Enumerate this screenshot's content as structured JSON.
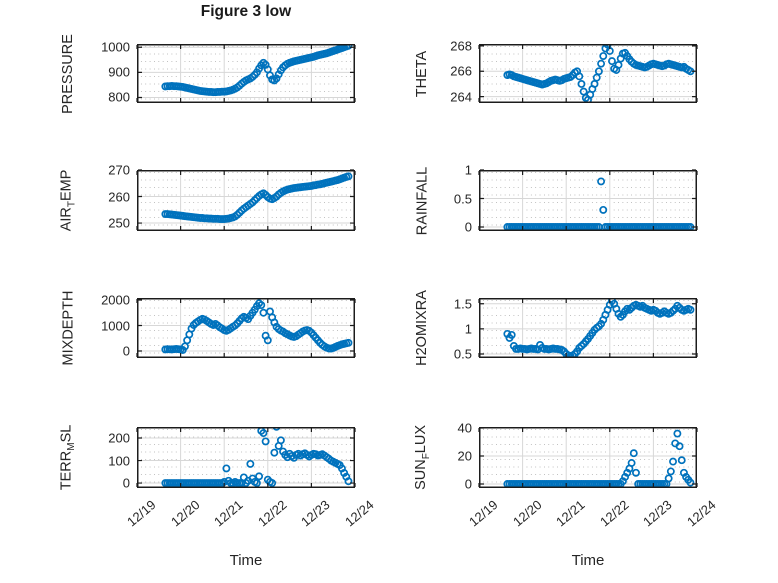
{
  "title": "Figure 3 low",
  "xlabel": "Time",
  "x_axis": {
    "tick_labels": [
      "12/19",
      "12/20",
      "12/21",
      "12/22",
      "12/23",
      "12/24"
    ],
    "tick_values": [
      0,
      1,
      2,
      3,
      4,
      5
    ]
  },
  "style": {
    "marker_color": "#0072BD",
    "major_grid_color": "#d7d7d7",
    "minor_grid_color": "#b3b3b3",
    "axis_color": "#1c1c1c",
    "text_color": "#262626",
    "background": "#ffffff"
  },
  "sampling": {
    "x_start": 0.65,
    "x_step": 0.05,
    "x_unit": "days-since-12/19"
  },
  "chart_data": [
    {
      "id": "pressure",
      "type": "scatter",
      "position": {
        "row": 0,
        "col": 0
      },
      "ylabel_segments": [
        [
          "PRESSURE",
          0
        ]
      ],
      "yticks": [
        800,
        900,
        1000
      ],
      "ylim": [
        778,
        1013
      ],
      "xlim": [
        0,
        5
      ],
      "y": [
        844,
        845,
        845,
        846,
        845,
        845,
        844,
        843,
        842,
        840,
        838,
        836,
        834,
        832,
        830,
        828,
        826,
        825,
        824,
        823,
        822,
        822,
        821,
        821,
        822,
        822,
        823,
        823,
        824,
        826,
        828,
        831,
        835,
        840,
        847,
        855,
        862,
        868,
        872,
        876,
        882,
        890,
        900,
        915,
        928,
        938,
        930,
        912,
        888,
        872,
        868,
        876,
        892,
        908,
        920,
        928,
        934,
        938,
        941,
        944,
        946,
        948,
        950,
        952,
        954,
        956,
        958,
        960,
        962,
        965,
        968,
        970,
        972,
        974,
        976,
        979,
        982,
        985,
        988,
        991,
        994,
        997,
        1000,
        1003,
        1006
      ]
    },
    {
      "id": "theta",
      "type": "scatter",
      "position": {
        "row": 0,
        "col": 1
      },
      "ylabel_segments": [
        [
          "THETA",
          0
        ]
      ],
      "yticks": [
        264,
        266,
        268
      ],
      "ylim": [
        263.5,
        268.15
      ],
      "xlim": [
        0,
        5
      ],
      "y": [
        265.7,
        265.75,
        265.7,
        265.6,
        265.55,
        265.5,
        265.45,
        265.4,
        265.35,
        265.3,
        265.25,
        265.2,
        265.15,
        265.1,
        265.05,
        265.0,
        264.95,
        265.0,
        265.05,
        265.15,
        265.25,
        265.3,
        265.35,
        265.3,
        265.25,
        265.3,
        265.4,
        265.45,
        265.5,
        265.55,
        265.7,
        265.9,
        266.0,
        265.6,
        265.0,
        264.4,
        263.9,
        263.75,
        264.15,
        264.6,
        265.0,
        265.5,
        266.0,
        266.6,
        267.2,
        267.8,
        268.1,
        267.6,
        266.8,
        266.2,
        266.1,
        266.5,
        267.0,
        267.4,
        267.45,
        267.2,
        266.95,
        266.75,
        266.6,
        266.5,
        266.45,
        266.4,
        266.35,
        266.3,
        266.35,
        266.45,
        266.55,
        266.6,
        266.55,
        266.5,
        266.45,
        266.4,
        266.45,
        266.55,
        266.6,
        266.55,
        266.5,
        266.45,
        266.4,
        266.35,
        266.3,
        266.35,
        266.2,
        266.1,
        266.0
      ]
    },
    {
      "id": "air_temp",
      "type": "scatter",
      "position": {
        "row": 1,
        "col": 0
      },
      "ylabel_segments": [
        [
          "AIR",
          0
        ],
        [
          "T",
          1
        ],
        [
          "EMP",
          0
        ]
      ],
      "yticks": [
        250,
        260,
        270
      ],
      "ylim": [
        247,
        270
      ],
      "xlim": [
        0,
        5
      ],
      "y": [
        253.4,
        253.4,
        253.3,
        253.2,
        253.1,
        253.0,
        252.9,
        252.8,
        252.7,
        252.6,
        252.5,
        252.4,
        252.3,
        252.2,
        252.1,
        252.0,
        251.9,
        251.9,
        251.8,
        251.8,
        251.7,
        251.7,
        251.6,
        251.6,
        251.6,
        251.5,
        251.5,
        251.5,
        251.6,
        251.7,
        251.9,
        252.1,
        252.5,
        253.1,
        253.9,
        254.7,
        255.4,
        256.0,
        256.6,
        257.2,
        257.8,
        258.6,
        259.4,
        260.2,
        260.8,
        261.2,
        260.6,
        259.8,
        259.2,
        259.0,
        259.4,
        260.0,
        260.8,
        261.4,
        261.9,
        262.3,
        262.6,
        262.8,
        263.0,
        263.2,
        263.3,
        263.4,
        263.5,
        263.6,
        263.7,
        263.8,
        263.9,
        264.0,
        264.2,
        264.3,
        264.5,
        264.6,
        264.8,
        265.0,
        265.2,
        265.4,
        265.6,
        265.8,
        266.0,
        266.2,
        266.5,
        266.8,
        267.1,
        267.4,
        267.6
      ]
    },
    {
      "id": "rainfall",
      "type": "scatter",
      "position": {
        "row": 1,
        "col": 1
      },
      "ylabel_segments": [
        [
          "RAINFALL",
          0
        ]
      ],
      "yticks": [
        0,
        0.5,
        1
      ],
      "ylim": [
        -0.07,
        1.0
      ],
      "xlim": [
        0,
        5
      ],
      "y": [
        0,
        0,
        0,
        0,
        0,
        0,
        0,
        0,
        0,
        0,
        0,
        0,
        0,
        0,
        0,
        0,
        0,
        0,
        0,
        0,
        0,
        0,
        0,
        0,
        0,
        0,
        0,
        0,
        0,
        0,
        0,
        0,
        0,
        0,
        0,
        0,
        0,
        0,
        0,
        0,
        0,
        0,
        0,
        0.8,
        0.3,
        0,
        0,
        0,
        0,
        0,
        0,
        0,
        0,
        0,
        0,
        0,
        0,
        0,
        0,
        0,
        0,
        0,
        0,
        0,
        0,
        0,
        0,
        0,
        0,
        0,
        0,
        0,
        0,
        0,
        0,
        0,
        0,
        0,
        0,
        0,
        0,
        0,
        0,
        0,
        0
      ]
    },
    {
      "id": "mixdepth",
      "type": "scatter",
      "position": {
        "row": 2,
        "col": 0
      },
      "ylabel_segments": [
        [
          "MIXDEPTH",
          0
        ]
      ],
      "yticks": [
        0,
        1000,
        2000
      ],
      "ylim": [
        -274,
        2078
      ],
      "xlim": [
        0,
        5
      ],
      "y": [
        60,
        70,
        65,
        60,
        70,
        80,
        70,
        60,
        40,
        180,
        420,
        650,
        880,
        1020,
        1100,
        1160,
        1220,
        1260,
        1230,
        1180,
        1120,
        1060,
        1020,
        1060,
        1000,
        930,
        880,
        820,
        790,
        830,
        890,
        950,
        1000,
        1080,
        1180,
        1280,
        1340,
        1300,
        1250,
        1380,
        1500,
        1620,
        1760,
        1870,
        1800,
        1500,
        600,
        420,
        1550,
        1320,
        1120,
        950,
        860,
        800,
        760,
        700,
        660,
        610,
        570,
        550,
        580,
        640,
        700,
        760,
        800,
        820,
        790,
        720,
        620,
        520,
        420,
        320,
        240,
        180,
        130,
        100,
        95,
        120,
        160,
        200,
        230,
        260,
        280,
        300,
        320
      ]
    },
    {
      "id": "h2omixra",
      "type": "scatter",
      "position": {
        "row": 2,
        "col": 1
      },
      "ylabel_segments": [
        [
          "H2OMIXRA",
          0
        ]
      ],
      "yticks": [
        0.5,
        1,
        1.5
      ],
      "ylim": [
        0.42,
        1.615
      ],
      "xlim": [
        0,
        5
      ],
      "y": [
        0.9,
        0.82,
        0.88,
        0.66,
        0.6,
        0.6,
        0.61,
        0.6,
        0.6,
        0.59,
        0.6,
        0.61,
        0.6,
        0.6,
        0.59,
        0.68,
        0.62,
        0.6,
        0.6,
        0.59,
        0.6,
        0.61,
        0.6,
        0.6,
        0.59,
        0.58,
        0.55,
        0.5,
        0.47,
        0.46,
        0.47,
        0.5,
        0.55,
        0.62,
        0.66,
        0.7,
        0.75,
        0.8,
        0.86,
        0.92,
        0.98,
        1.02,
        1.05,
        1.1,
        1.18,
        1.28,
        1.38,
        1.48,
        1.56,
        1.5,
        1.4,
        1.3,
        1.24,
        1.28,
        1.35,
        1.4,
        1.38,
        1.42,
        1.46,
        1.48,
        1.46,
        1.44,
        1.46,
        1.42,
        1.4,
        1.38,
        1.36,
        1.38,
        1.36,
        1.32,
        1.3,
        1.32,
        1.35,
        1.32,
        1.3,
        1.32,
        1.36,
        1.4,
        1.46,
        1.42,
        1.38,
        1.36,
        1.38,
        1.4,
        1.38
      ]
    },
    {
      "id": "terr_msl",
      "type": "scatter",
      "position": {
        "row": 3,
        "col": 0
      },
      "ylabel_segments": [
        [
          "TERR",
          0
        ],
        [
          "M",
          1
        ],
        [
          "SL",
          0
        ]
      ],
      "yticks": [
        0,
        100,
        200
      ],
      "ylim": [
        -22,
        249
      ],
      "xlim": [
        0,
        5
      ],
      "y": [
        0,
        0,
        0,
        0,
        0,
        0,
        0,
        0,
        0,
        0,
        0,
        0,
        0,
        0,
        0,
        0,
        0,
        0,
        0,
        0,
        0,
        0,
        0,
        0,
        0,
        0,
        0,
        5,
        65,
        10,
        0,
        0,
        5,
        0,
        0,
        0,
        25,
        0,
        10,
        85,
        20,
        5,
        0,
        30,
        232,
        222,
        185,
        15,
        5,
        0,
        135,
        250,
        165,
        190,
        140,
        125,
        115,
        130,
        120,
        112,
        125,
        130,
        122,
        128,
        132,
        125,
        118,
        125,
        130,
        128,
        122,
        125,
        128,
        122,
        115,
        108,
        100,
        95,
        90,
        85,
        80,
        65,
        45,
        28,
        8
      ]
    },
    {
      "id": "sun_flux",
      "type": "scatter",
      "position": {
        "row": 3,
        "col": 1
      },
      "ylabel_segments": [
        [
          "SUN",
          0
        ],
        [
          "F",
          1
        ],
        [
          "LUX",
          0
        ]
      ],
      "yticks": [
        0,
        20,
        40
      ],
      "ylim": [
        -2.85,
        40.7
      ],
      "xlim": [
        0,
        5
      ],
      "y": [
        0,
        0,
        0,
        0,
        0,
        0,
        0,
        0,
        0,
        0,
        0,
        0,
        0,
        0,
        0,
        0,
        0,
        0,
        0,
        0,
        0,
        0,
        0,
        0,
        0,
        0,
        0,
        0,
        0,
        0,
        0,
        0,
        0,
        0,
        0,
        0,
        0,
        0,
        0,
        0,
        0,
        0,
        0,
        0,
        0,
        0,
        0,
        0,
        0,
        0,
        0,
        0,
        0,
        2,
        5,
        8,
        11,
        15,
        22,
        8,
        0,
        0,
        0,
        0,
        0,
        0,
        0,
        0,
        0,
        0,
        0,
        0,
        0,
        0,
        4,
        9,
        16,
        29,
        36,
        27,
        17,
        8,
        5,
        3,
        1
      ]
    }
  ]
}
